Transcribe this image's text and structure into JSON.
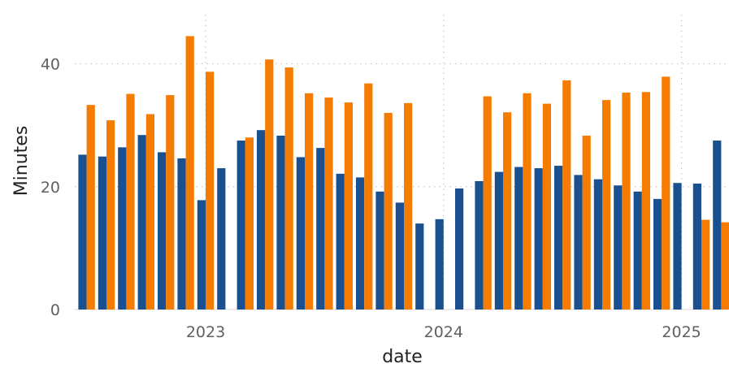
{
  "chart_data": {
    "type": "bar",
    "xlabel": "date",
    "ylabel": "Minutes",
    "ylim": [
      0,
      48
    ],
    "yticks": [
      0,
      20,
      40
    ],
    "xticks": [
      {
        "date": "2023-01-01",
        "label": "2023"
      },
      {
        "date": "2024-01-01",
        "label": "2024"
      },
      {
        "date": "2025-01-01",
        "label": "2025"
      }
    ],
    "grid": true,
    "legend": "none",
    "colors": [
      "#1a5090",
      "#f57c00"
    ],
    "x": [
      "2022-07",
      "2022-08",
      "2022-09",
      "2022-10",
      "2022-11",
      "2022-12",
      "2023-01",
      "2023-02",
      "2023-03",
      "2023-04",
      "2023-05",
      "2023-06",
      "2023-07",
      "2023-08",
      "2023-09",
      "2023-10",
      "2023-11",
      "2023-12",
      "2024-01",
      "2024-02",
      "2024-03",
      "2024-04",
      "2024-05",
      "2024-06",
      "2024-07",
      "2024-08",
      "2024-09",
      "2024-10",
      "2024-11",
      "2024-12",
      "2025-01",
      "2025-02",
      "2025-03"
    ],
    "series": [
      {
        "values": [
          25.2,
          24.9,
          26.4,
          28.4,
          25.6,
          24.6,
          17.8,
          23.0,
          27.5,
          29.2,
          28.3,
          24.8,
          26.3,
          22.1,
          21.5,
          19.2,
          17.4,
          14.0,
          14.7,
          19.7,
          20.9,
          22.4,
          23.2,
          23.0,
          23.4,
          21.9,
          21.2,
          20.2,
          19.2,
          18.0,
          20.6,
          20.5,
          27.5
        ]
      },
      {
        "values": [
          33.3,
          30.8,
          35.1,
          31.8,
          34.9,
          44.5,
          38.7,
          null,
          28.0,
          40.7,
          39.4,
          35.2,
          34.5,
          33.7,
          36.8,
          32.0,
          33.6,
          null,
          null,
          null,
          34.7,
          32.1,
          35.2,
          33.5,
          37.3,
          28.3,
          34.1,
          35.3,
          35.4,
          37.9,
          null,
          14.6,
          14.2
        ]
      }
    ]
  }
}
